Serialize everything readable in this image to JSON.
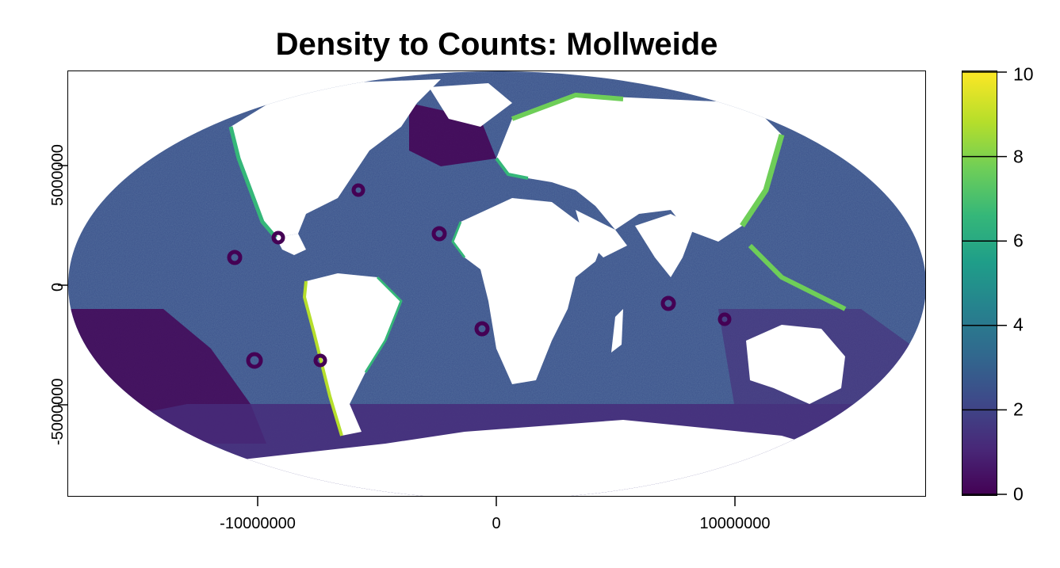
{
  "title": "Density to Counts: Mollweide",
  "x_axis": {
    "ticks": [
      "-10000000",
      "0",
      "10000000"
    ]
  },
  "y_axis": {
    "ticks": [
      "-5000000",
      "0",
      "5000000"
    ]
  },
  "legend": {
    "ticks": [
      "0",
      "2",
      "4",
      "6",
      "8",
      "10"
    ],
    "range": [
      0,
      10
    ],
    "palette": "viridis"
  },
  "colors": {
    "ocean_deep": "#472c7a",
    "ocean_open": "#3b528b",
    "ocean_low": "#440154",
    "shelf_high": "#35b779",
    "shelf_max": "#6ece58",
    "land": "#ffffff"
  },
  "chart_data": {
    "type": "heatmap",
    "title": "Density to Counts: Mollweide",
    "xlabel": "",
    "ylabel": "",
    "xlim": [
      -18000000,
      18000000
    ],
    "ylim": [
      -9000000,
      9000000
    ],
    "x_ticks": [
      -10000000,
      0,
      10000000
    ],
    "y_ticks": [
      -5000000,
      0,
      5000000
    ],
    "color_scale": {
      "min": 0,
      "max": 10,
      "ticks": [
        0,
        2,
        4,
        6,
        8,
        10
      ]
    },
    "projection": "Mollweide",
    "grid": false
  }
}
